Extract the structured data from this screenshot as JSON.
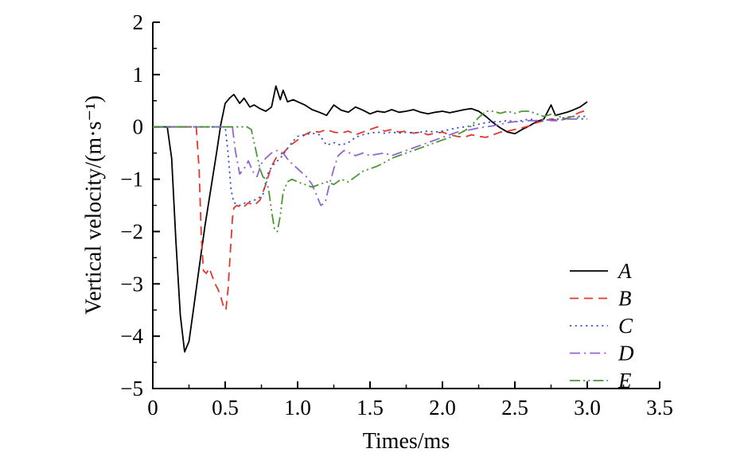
{
  "chart_data": {
    "type": "line",
    "title": "",
    "xlabel": "Times/ms",
    "ylabel": "Vertical velocity/(m·s⁻¹)",
    "xlim": [
      0,
      3.5
    ],
    "ylim": [
      -5,
      2
    ],
    "x_ticks": [
      0,
      0.5,
      1.0,
      1.5,
      2.0,
      2.5,
      3.0,
      3.5
    ],
    "x_tick_labels": [
      "0",
      "0.5",
      "1.0",
      "1.5",
      "2.0",
      "2.5",
      "3.0",
      "3.5"
    ],
    "y_ticks": [
      -5,
      -4,
      -3,
      -2,
      -1,
      0,
      1,
      2
    ],
    "y_tick_labels": [
      "−5",
      "−4",
      "−3",
      "−2",
      "−1",
      "0",
      "1",
      "2"
    ],
    "grid": false,
    "legend_position": "lower right",
    "series": [
      {
        "name": "A",
        "color": "#000000",
        "style": "solid",
        "points": [
          [
            0,
            0
          ],
          [
            0.1,
            0
          ],
          [
            0.13,
            -0.6
          ],
          [
            0.16,
            -2.2
          ],
          [
            0.19,
            -3.6
          ],
          [
            0.22,
            -4.3
          ],
          [
            0.25,
            -4.1
          ],
          [
            0.28,
            -3.5
          ],
          [
            0.32,
            -2.7
          ],
          [
            0.36,
            -1.9
          ],
          [
            0.4,
            -1.2
          ],
          [
            0.44,
            -0.5
          ],
          [
            0.47,
            0.05
          ],
          [
            0.5,
            0.45
          ],
          [
            0.53,
            0.55
          ],
          [
            0.56,
            0.62
          ],
          [
            0.6,
            0.45
          ],
          [
            0.63,
            0.55
          ],
          [
            0.67,
            0.38
          ],
          [
            0.7,
            0.42
          ],
          [
            0.74,
            0.35
          ],
          [
            0.78,
            0.3
          ],
          [
            0.82,
            0.38
          ],
          [
            0.85,
            0.78
          ],
          [
            0.88,
            0.52
          ],
          [
            0.9,
            0.7
          ],
          [
            0.93,
            0.48
          ],
          [
            0.97,
            0.52
          ],
          [
            1.0,
            0.48
          ],
          [
            1.05,
            0.42
          ],
          [
            1.1,
            0.33
          ],
          [
            1.15,
            0.28
          ],
          [
            1.2,
            0.22
          ],
          [
            1.25,
            0.42
          ],
          [
            1.3,
            0.32
          ],
          [
            1.35,
            0.28
          ],
          [
            1.4,
            0.38
          ],
          [
            1.45,
            0.32
          ],
          [
            1.5,
            0.25
          ],
          [
            1.55,
            0.3
          ],
          [
            1.6,
            0.28
          ],
          [
            1.65,
            0.33
          ],
          [
            1.7,
            0.28
          ],
          [
            1.75,
            0.3
          ],
          [
            1.8,
            0.33
          ],
          [
            1.85,
            0.28
          ],
          [
            1.9,
            0.25
          ],
          [
            1.95,
            0.28
          ],
          [
            2.0,
            0.3
          ],
          [
            2.05,
            0.27
          ],
          [
            2.1,
            0.3
          ],
          [
            2.15,
            0.33
          ],
          [
            2.2,
            0.35
          ],
          [
            2.25,
            0.3
          ],
          [
            2.3,
            0.2
          ],
          [
            2.35,
            0.08
          ],
          [
            2.4,
            -0.02
          ],
          [
            2.45,
            -0.1
          ],
          [
            2.5,
            -0.13
          ],
          [
            2.55,
            -0.05
          ],
          [
            2.6,
            0.02
          ],
          [
            2.65,
            0.1
          ],
          [
            2.7,
            0.15
          ],
          [
            2.75,
            0.42
          ],
          [
            2.78,
            0.22
          ],
          [
            2.82,
            0.25
          ],
          [
            2.86,
            0.28
          ],
          [
            2.9,
            0.32
          ],
          [
            2.95,
            0.38
          ],
          [
            3.0,
            0.48
          ]
        ]
      },
      {
        "name": "B",
        "color": "#e8352b",
        "style": "dashed",
        "points": [
          [
            0,
            0
          ],
          [
            0.3,
            0
          ],
          [
            0.32,
            -0.8
          ],
          [
            0.335,
            -2.1
          ],
          [
            0.35,
            -2.75
          ],
          [
            0.37,
            -2.8
          ],
          [
            0.39,
            -2.7
          ],
          [
            0.41,
            -2.85
          ],
          [
            0.43,
            -3.0
          ],
          [
            0.45,
            -3.1
          ],
          [
            0.47,
            -3.25
          ],
          [
            0.49,
            -3.45
          ],
          [
            0.505,
            -3.5
          ],
          [
            0.52,
            -3.1
          ],
          [
            0.535,
            -2.4
          ],
          [
            0.55,
            -1.75
          ],
          [
            0.56,
            -1.55
          ],
          [
            0.58,
            -1.5
          ],
          [
            0.62,
            -1.55
          ],
          [
            0.66,
            -1.45
          ],
          [
            0.7,
            -1.5
          ],
          [
            0.74,
            -1.4
          ],
          [
            0.78,
            -1.1
          ],
          [
            0.82,
            -0.75
          ],
          [
            0.86,
            -0.55
          ],
          [
            0.9,
            -0.5
          ],
          [
            0.95,
            -0.35
          ],
          [
            1.0,
            -0.25
          ],
          [
            1.05,
            -0.15
          ],
          [
            1.1,
            -0.08
          ],
          [
            1.15,
            -0.1
          ],
          [
            1.2,
            -0.05
          ],
          [
            1.25,
            -0.1
          ],
          [
            1.3,
            -0.12
          ],
          [
            1.35,
            -0.08
          ],
          [
            1.4,
            -0.15
          ],
          [
            1.45,
            -0.1
          ],
          [
            1.5,
            -0.05
          ],
          [
            1.55,
            0.0
          ],
          [
            1.6,
            -0.08
          ],
          [
            1.65,
            -0.05
          ],
          [
            1.7,
            -0.1
          ],
          [
            1.75,
            -0.08
          ],
          [
            1.8,
            -0.12
          ],
          [
            1.85,
            -0.1
          ],
          [
            1.9,
            -0.15
          ],
          [
            1.95,
            -0.12
          ],
          [
            2.0,
            -0.1
          ],
          [
            2.05,
            -0.15
          ],
          [
            2.1,
            -0.18
          ],
          [
            2.15,
            -0.2
          ],
          [
            2.2,
            -0.15
          ],
          [
            2.25,
            -0.18
          ],
          [
            2.3,
            -0.2
          ],
          [
            2.35,
            -0.15
          ],
          [
            2.4,
            -0.1
          ],
          [
            2.45,
            -0.08
          ],
          [
            2.5,
            -0.05
          ],
          [
            2.55,
            -0.02
          ],
          [
            2.6,
            0.02
          ],
          [
            2.65,
            0.08
          ],
          [
            2.7,
            0.12
          ],
          [
            2.75,
            0.15
          ],
          [
            2.8,
            0.12
          ],
          [
            2.85,
            0.15
          ],
          [
            2.9,
            0.22
          ],
          [
            2.95,
            0.28
          ],
          [
            3.0,
            0.32
          ]
        ]
      },
      {
        "name": "C",
        "color": "#2d59c8",
        "style": "dotted",
        "points": [
          [
            0,
            0
          ],
          [
            0.5,
            0
          ],
          [
            0.52,
            -0.5
          ],
          [
            0.54,
            -1.2
          ],
          [
            0.56,
            -1.45
          ],
          [
            0.6,
            -1.5
          ],
          [
            0.64,
            -1.45
          ],
          [
            0.68,
            -1.42
          ],
          [
            0.72,
            -1.38
          ],
          [
            0.76,
            -1.3
          ],
          [
            0.78,
            -1.05
          ],
          [
            0.8,
            -0.85
          ],
          [
            0.84,
            -0.7
          ],
          [
            0.88,
            -0.6
          ],
          [
            0.92,
            -0.45
          ],
          [
            0.96,
            -0.3
          ],
          [
            1.0,
            -0.18
          ],
          [
            1.05,
            -0.15
          ],
          [
            1.1,
            -0.12
          ],
          [
            1.15,
            -0.15
          ],
          [
            1.2,
            -0.35
          ],
          [
            1.25,
            -0.3
          ],
          [
            1.3,
            -0.35
          ],
          [
            1.35,
            -0.3
          ],
          [
            1.4,
            -0.2
          ],
          [
            1.45,
            -0.15
          ],
          [
            1.5,
            -0.12
          ],
          [
            1.55,
            -0.1
          ],
          [
            1.6,
            -0.12
          ],
          [
            1.65,
            -0.1
          ],
          [
            1.7,
            -0.12
          ],
          [
            1.75,
            -0.1
          ],
          [
            1.8,
            -0.12
          ],
          [
            1.85,
            -0.1
          ],
          [
            1.9,
            -0.08
          ],
          [
            1.95,
            -0.1
          ],
          [
            2.0,
            -0.08
          ],
          [
            2.05,
            -0.05
          ],
          [
            2.1,
            -0.02
          ],
          [
            2.15,
            0.0
          ],
          [
            2.2,
            0.02
          ],
          [
            2.25,
            0.05
          ],
          [
            2.3,
            0.08
          ],
          [
            2.35,
            0.1
          ],
          [
            2.4,
            0.1
          ],
          [
            2.45,
            0.12
          ],
          [
            2.5,
            0.1
          ],
          [
            2.55,
            0.12
          ],
          [
            2.6,
            0.15
          ],
          [
            2.65,
            0.12
          ],
          [
            2.7,
            0.12
          ],
          [
            2.75,
            0.15
          ],
          [
            2.8,
            0.15
          ],
          [
            2.85,
            0.18
          ],
          [
            2.9,
            0.2
          ],
          [
            2.95,
            0.2
          ],
          [
            3.0,
            0.2
          ]
        ]
      },
      {
        "name": "D",
        "color": "#9165d2",
        "style": "dashdot",
        "points": [
          [
            0,
            0
          ],
          [
            0.55,
            0
          ],
          [
            0.57,
            -0.45
          ],
          [
            0.6,
            -0.9
          ],
          [
            0.63,
            -0.8
          ],
          [
            0.66,
            -0.65
          ],
          [
            0.69,
            -0.85
          ],
          [
            0.72,
            -0.95
          ],
          [
            0.75,
            -0.7
          ],
          [
            0.78,
            -0.6
          ],
          [
            0.82,
            -0.5
          ],
          [
            0.86,
            -0.45
          ],
          [
            0.9,
            -0.5
          ],
          [
            0.94,
            -0.65
          ],
          [
            0.98,
            -0.75
          ],
          [
            1.02,
            -0.85
          ],
          [
            1.06,
            -0.95
          ],
          [
            1.1,
            -1.1
          ],
          [
            1.13,
            -1.3
          ],
          [
            1.16,
            -1.5
          ],
          [
            1.19,
            -1.45
          ],
          [
            1.22,
            -1.1
          ],
          [
            1.25,
            -0.8
          ],
          [
            1.28,
            -0.55
          ],
          [
            1.32,
            -0.45
          ],
          [
            1.36,
            -0.5
          ],
          [
            1.4,
            -0.55
          ],
          [
            1.45,
            -0.5
          ],
          [
            1.5,
            -0.55
          ],
          [
            1.55,
            -0.52
          ],
          [
            1.6,
            -0.5
          ],
          [
            1.65,
            -0.55
          ],
          [
            1.7,
            -0.5
          ],
          [
            1.75,
            -0.45
          ],
          [
            1.8,
            -0.4
          ],
          [
            1.85,
            -0.35
          ],
          [
            1.9,
            -0.3
          ],
          [
            1.95,
            -0.25
          ],
          [
            2.0,
            -0.2
          ],
          [
            2.05,
            -0.15
          ],
          [
            2.1,
            -0.1
          ],
          [
            2.15,
            -0.08
          ],
          [
            2.2,
            -0.05
          ],
          [
            2.25,
            -0.02
          ],
          [
            2.3,
            0.0
          ],
          [
            2.35,
            0.02
          ],
          [
            2.4,
            0.05
          ],
          [
            2.45,
            0.08
          ],
          [
            2.5,
            0.1
          ],
          [
            2.55,
            0.1
          ],
          [
            2.6,
            0.12
          ],
          [
            2.65,
            0.12
          ],
          [
            2.7,
            0.15
          ],
          [
            2.75,
            0.12
          ],
          [
            2.8,
            0.12
          ],
          [
            2.85,
            0.15
          ],
          [
            2.9,
            0.15
          ],
          [
            2.95,
            0.15
          ],
          [
            3.0,
            0.15
          ]
        ]
      },
      {
        "name": "E",
        "color": "#4d9636",
        "style": "dashdotdot",
        "points": [
          [
            0,
            0
          ],
          [
            0.65,
            0
          ],
          [
            0.68,
            -0.05
          ],
          [
            0.7,
            -0.3
          ],
          [
            0.72,
            -0.55
          ],
          [
            0.74,
            -0.8
          ],
          [
            0.76,
            -0.95
          ],
          [
            0.78,
            -1.0
          ],
          [
            0.8,
            -1.2
          ],
          [
            0.82,
            -1.6
          ],
          [
            0.84,
            -1.95
          ],
          [
            0.86,
            -2.0
          ],
          [
            0.88,
            -1.7
          ],
          [
            0.9,
            -1.25
          ],
          [
            0.93,
            -1.05
          ],
          [
            0.96,
            -1.0
          ],
          [
            1.0,
            -1.05
          ],
          [
            1.05,
            -1.1
          ],
          [
            1.1,
            -1.15
          ],
          [
            1.15,
            -1.1
          ],
          [
            1.2,
            -1.05
          ],
          [
            1.25,
            -1.1
          ],
          [
            1.3,
            -1.0
          ],
          [
            1.35,
            -1.05
          ],
          [
            1.4,
            -0.95
          ],
          [
            1.45,
            -0.85
          ],
          [
            1.5,
            -0.8
          ],
          [
            1.55,
            -0.75
          ],
          [
            1.6,
            -0.68
          ],
          [
            1.65,
            -0.6
          ],
          [
            1.7,
            -0.55
          ],
          [
            1.75,
            -0.5
          ],
          [
            1.8,
            -0.45
          ],
          [
            1.85,
            -0.4
          ],
          [
            1.9,
            -0.35
          ],
          [
            1.95,
            -0.3
          ],
          [
            2.0,
            -0.25
          ],
          [
            2.05,
            -0.2
          ],
          [
            2.1,
            -0.15
          ],
          [
            2.15,
            -0.08
          ],
          [
            2.2,
            0.02
          ],
          [
            2.25,
            0.18
          ],
          [
            2.3,
            0.3
          ],
          [
            2.35,
            0.3
          ],
          [
            2.4,
            0.26
          ],
          [
            2.45,
            0.3
          ],
          [
            2.5,
            0.26
          ],
          [
            2.55,
            0.3
          ],
          [
            2.6,
            0.3
          ],
          [
            2.65,
            0.25
          ],
          [
            2.7,
            0.2
          ],
          [
            2.75,
            0.24
          ],
          [
            2.8,
            0.2
          ],
          [
            2.85,
            0.16
          ],
          [
            2.9,
            0.2
          ],
          [
            2.95,
            0.16
          ],
          [
            3.0,
            0.15
          ]
        ]
      }
    ]
  }
}
